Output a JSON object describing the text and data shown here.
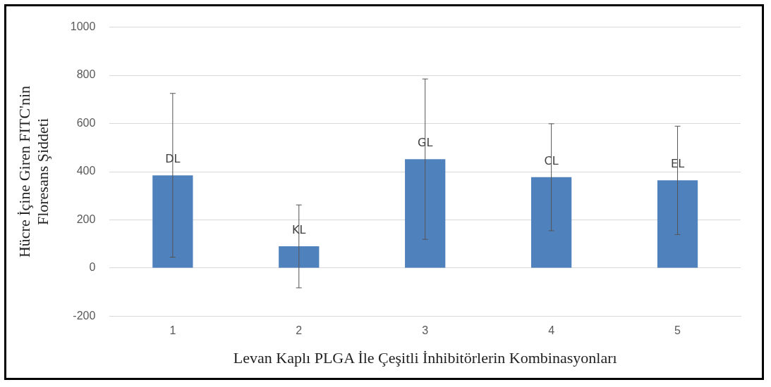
{
  "chart_data": {
    "type": "bar",
    "xlabel": "Levan Kaplı PLGA İle Çeşitli İnhibitörlerin Kombinasyonları",
    "ylabel": "Hücre İçine Giren FITC'nin\nFloresans Şiddeti",
    "categories": [
      "1",
      "2",
      "3",
      "4",
      "5"
    ],
    "values": [
      385,
      90,
      452,
      377,
      364
    ],
    "errors": [
      340,
      172,
      333,
      222,
      225
    ],
    "color": "#4f81bd",
    "ylim": [
      -200,
      1000
    ],
    "yticks": [
      -200,
      0,
      200,
      400,
      600,
      800,
      1000
    ],
    "grid": "y",
    "legend": false,
    "annotations": [
      {
        "text": "DL",
        "x": "1",
        "y": 385
      },
      {
        "text": "KL",
        "x": "2",
        "y": 90
      },
      {
        "text": "GL",
        "x": "3",
        "y": 452
      },
      {
        "text": "CL",
        "x": "4",
        "y": 377
      },
      {
        "text": "EL",
        "x": "5",
        "y": 364
      }
    ]
  }
}
